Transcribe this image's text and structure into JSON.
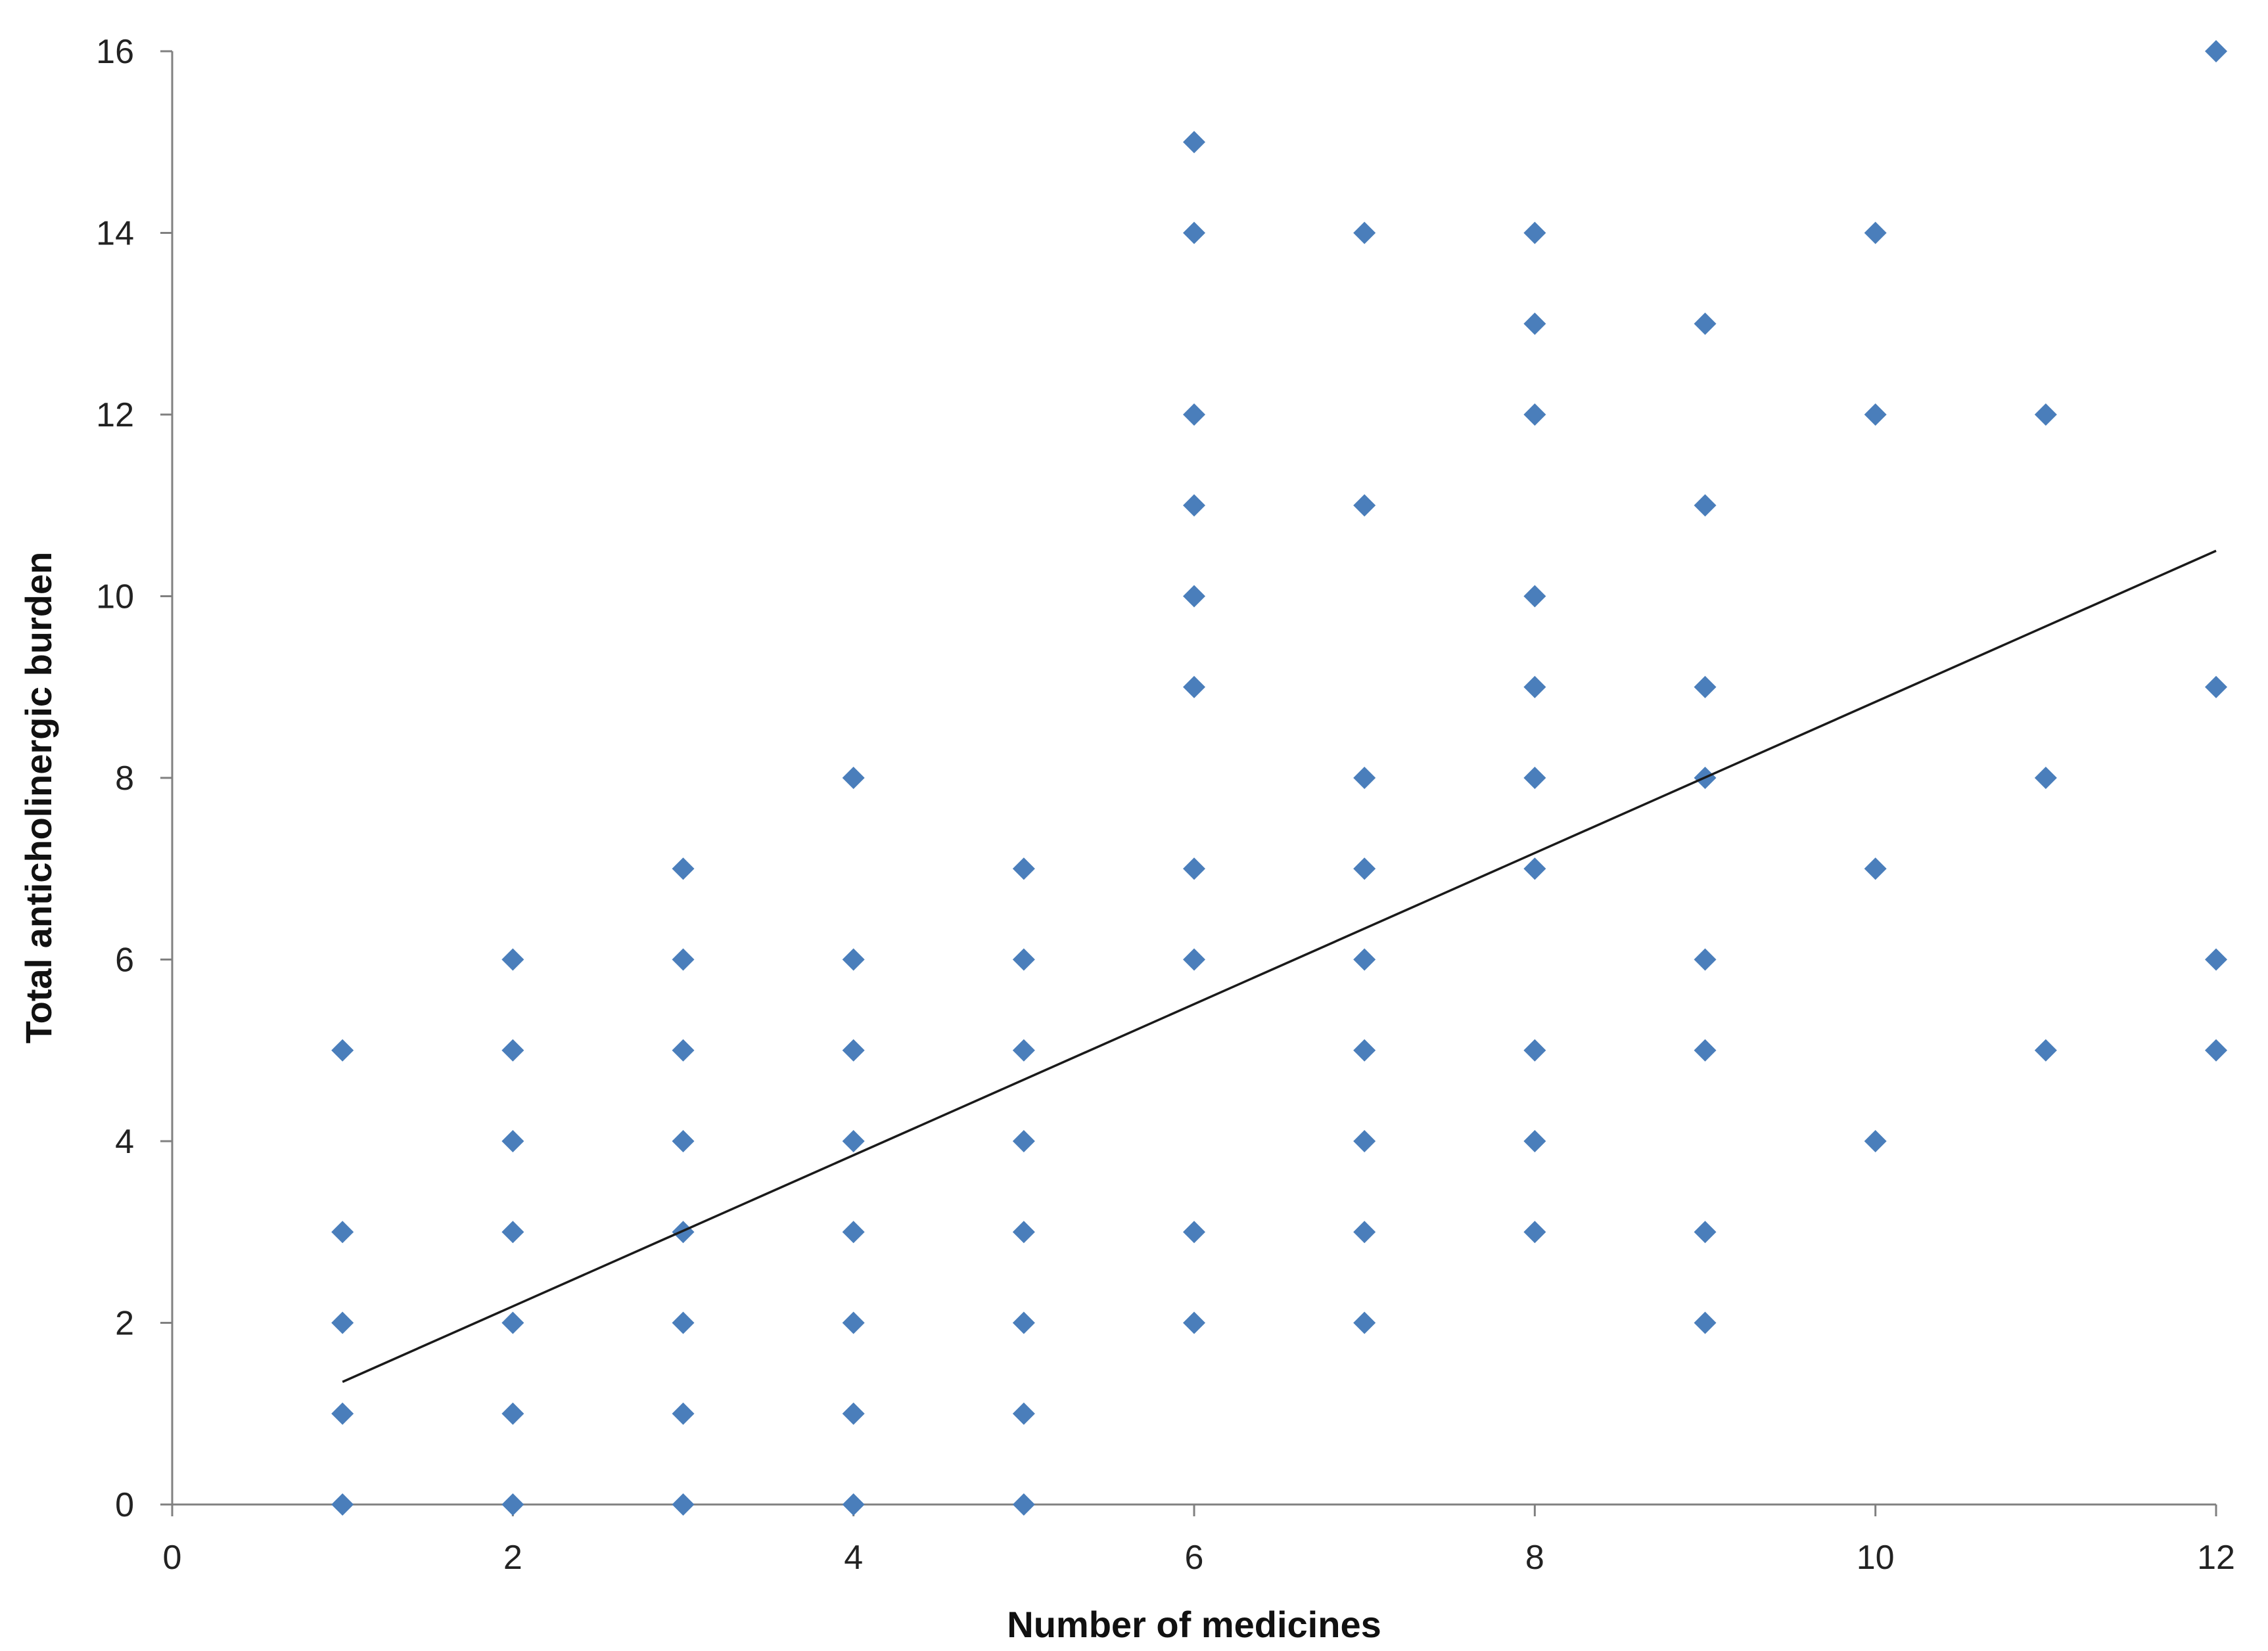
{
  "chart_data": {
    "type": "scatter",
    "xlabel": "Number of medicines",
    "ylabel": "Total anticholinergic burden",
    "xlim": [
      0,
      12
    ],
    "ylim": [
      0,
      16
    ],
    "xticks": [
      0,
      2,
      4,
      6,
      8,
      10,
      12
    ],
    "yticks": [
      0,
      2,
      4,
      6,
      8,
      10,
      12,
      14,
      16
    ],
    "grid": false,
    "legend": "none",
    "marker": "diamond",
    "colors": {
      "marker": "#4a7ebb",
      "trendline": "#1a1a1a",
      "axis": "#808080"
    },
    "series": [
      {
        "points": [
          [
            1,
            0
          ],
          [
            1,
            1
          ],
          [
            1,
            2
          ],
          [
            1,
            3
          ],
          [
            1,
            5
          ],
          [
            2,
            0
          ],
          [
            2,
            1
          ],
          [
            2,
            2
          ],
          [
            2,
            3
          ],
          [
            2,
            4
          ],
          [
            2,
            5
          ],
          [
            2,
            6
          ],
          [
            3,
            0
          ],
          [
            3,
            1
          ],
          [
            3,
            2
          ],
          [
            3,
            3
          ],
          [
            3,
            4
          ],
          [
            3,
            5
          ],
          [
            3,
            6
          ],
          [
            3,
            7
          ],
          [
            4,
            0
          ],
          [
            4,
            1
          ],
          [
            4,
            2
          ],
          [
            4,
            3
          ],
          [
            4,
            4
          ],
          [
            4,
            5
          ],
          [
            4,
            6
          ],
          [
            4,
            8
          ],
          [
            5,
            0
          ],
          [
            5,
            1
          ],
          [
            5,
            2
          ],
          [
            5,
            3
          ],
          [
            5,
            4
          ],
          [
            5,
            5
          ],
          [
            5,
            6
          ],
          [
            5,
            7
          ],
          [
            6,
            2
          ],
          [
            6,
            3
          ],
          [
            6,
            6
          ],
          [
            6,
            7
          ],
          [
            6,
            9
          ],
          [
            6,
            10
          ],
          [
            6,
            11
          ],
          [
            6,
            12
          ],
          [
            6,
            14
          ],
          [
            6,
            15
          ],
          [
            7,
            2
          ],
          [
            7,
            3
          ],
          [
            7,
            4
          ],
          [
            7,
            5
          ],
          [
            7,
            6
          ],
          [
            7,
            7
          ],
          [
            7,
            8
          ],
          [
            7,
            11
          ],
          [
            7,
            14
          ],
          [
            8,
            3
          ],
          [
            8,
            4
          ],
          [
            8,
            5
          ],
          [
            8,
            7
          ],
          [
            8,
            8
          ],
          [
            8,
            9
          ],
          [
            8,
            10
          ],
          [
            8,
            12
          ],
          [
            8,
            13
          ],
          [
            8,
            14
          ],
          [
            9,
            2
          ],
          [
            9,
            3
          ],
          [
            9,
            5
          ],
          [
            9,
            6
          ],
          [
            9,
            8
          ],
          [
            9,
            9
          ],
          [
            9,
            11
          ],
          [
            9,
            13
          ],
          [
            10,
            4
          ],
          [
            10,
            7
          ],
          [
            10,
            12
          ],
          [
            10,
            14
          ],
          [
            11,
            5
          ],
          [
            11,
            8
          ],
          [
            11,
            12
          ],
          [
            12,
            5
          ],
          [
            12,
            6
          ],
          [
            12,
            9
          ],
          [
            12,
            16
          ]
        ]
      }
    ],
    "trendline": {
      "type": "linear",
      "x": [
        1,
        12
      ],
      "y": [
        1.35,
        10.5
      ]
    }
  }
}
